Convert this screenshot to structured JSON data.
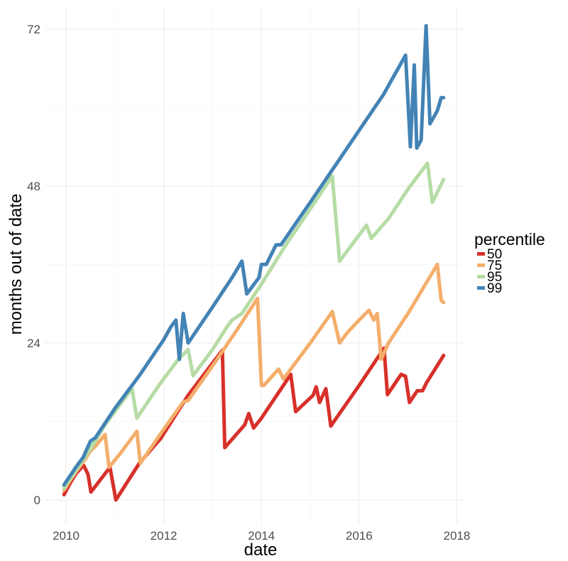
{
  "chart_data": {
    "type": "line",
    "title": "",
    "xlabel": "date",
    "ylabel": "months out of date",
    "xlim": [
      2009.55,
      2018.15
    ],
    "ylim": [
      -3,
      75
    ],
    "x_ticks": [
      2010,
      2012,
      2014,
      2016,
      2018
    ],
    "x_tick_labels": [
      "2010",
      "2012",
      "2014",
      "2016",
      "2018"
    ],
    "y_ticks": [
      0,
      24,
      48,
      72
    ],
    "y_tick_labels": [
      "0",
      "24",
      "48",
      "72"
    ],
    "grid": true,
    "legend": {
      "title": "percentile",
      "position": "right"
    },
    "series": [
      {
        "name": "50",
        "color": "#d7302a",
        "points": [
          [
            2009.96,
            0.8
          ],
          [
            2010.08,
            2.5
          ],
          [
            2010.2,
            4.0
          ],
          [
            2010.36,
            5.3
          ],
          [
            2010.45,
            3.9
          ],
          [
            2010.51,
            1.2
          ],
          [
            2010.9,
            5.0
          ],
          [
            2011.02,
            0.0
          ],
          [
            2011.5,
            5.6
          ],
          [
            2011.88,
            8.9
          ],
          [
            2011.93,
            9.3
          ],
          [
            2012.5,
            16.0
          ],
          [
            2013.2,
            22.9
          ],
          [
            2013.25,
            8.0
          ],
          [
            2013.66,
            11.5
          ],
          [
            2013.74,
            13.2
          ],
          [
            2013.84,
            11.0
          ],
          [
            2014.0,
            12.5
          ],
          [
            2014.6,
            19.2
          ],
          [
            2014.7,
            13.5
          ],
          [
            2015.06,
            16.0
          ],
          [
            2015.12,
            17.3
          ],
          [
            2015.19,
            14.9
          ],
          [
            2015.32,
            17.0
          ],
          [
            2015.42,
            11.3
          ],
          [
            2016.0,
            17.5
          ],
          [
            2016.51,
            23.2
          ],
          [
            2016.58,
            16.1
          ],
          [
            2016.86,
            19.2
          ],
          [
            2016.95,
            18.9
          ],
          [
            2017.03,
            14.9
          ],
          [
            2017.19,
            16.7
          ],
          [
            2017.3,
            16.7
          ],
          [
            2017.38,
            17.9
          ],
          [
            2017.73,
            22.1
          ]
        ]
      },
      {
        "name": "75",
        "color": "#f4ae6b",
        "points": [
          [
            2009.96,
            1.5
          ],
          [
            2010.1,
            3.2
          ],
          [
            2010.25,
            4.8
          ],
          [
            2010.4,
            6.3
          ],
          [
            2010.5,
            7.5
          ],
          [
            2010.6,
            8.2
          ],
          [
            2010.8,
            10.0
          ],
          [
            2010.88,
            5.0
          ],
          [
            2011.1,
            7.0
          ],
          [
            2011.45,
            10.5
          ],
          [
            2011.52,
            5.6
          ],
          [
            2012.0,
            10.8
          ],
          [
            2012.4,
            15.0
          ],
          [
            2012.5,
            15.2
          ],
          [
            2013.0,
            20.5
          ],
          [
            2013.5,
            26.0
          ],
          [
            2013.92,
            30.8
          ],
          [
            2014.0,
            17.5
          ],
          [
            2014.05,
            17.5
          ],
          [
            2014.35,
            20.0
          ],
          [
            2014.45,
            18.5
          ],
          [
            2014.7,
            21.0
          ],
          [
            2015.0,
            24.0
          ],
          [
            2015.45,
            28.8
          ],
          [
            2015.6,
            24.0
          ],
          [
            2015.75,
            25.5
          ],
          [
            2016.0,
            27.5
          ],
          [
            2016.2,
            29.0
          ],
          [
            2016.3,
            27.5
          ],
          [
            2016.37,
            28.5
          ],
          [
            2016.45,
            21.5
          ],
          [
            2016.6,
            24.0
          ],
          [
            2017.0,
            28.5
          ],
          [
            2017.6,
            36.0
          ],
          [
            2017.68,
            30.5
          ],
          [
            2017.73,
            30.2
          ]
        ]
      },
      {
        "name": "95",
        "color": "#b5dca5",
        "points": [
          [
            2009.96,
            1.8
          ],
          [
            2010.2,
            4.5
          ],
          [
            2010.5,
            7.8
          ],
          [
            2010.8,
            11.5
          ],
          [
            2011.05,
            14.0
          ],
          [
            2011.35,
            17.0
          ],
          [
            2011.45,
            12.5
          ],
          [
            2011.9,
            17.5
          ],
          [
            2012.3,
            21.5
          ],
          [
            2012.5,
            23.0
          ],
          [
            2012.6,
            19.0
          ],
          [
            2013.0,
            23.0
          ],
          [
            2013.3,
            26.5
          ],
          [
            2013.4,
            27.5
          ],
          [
            2013.6,
            28.5
          ],
          [
            2014.0,
            33.0
          ],
          [
            2014.5,
            39.0
          ],
          [
            2015.0,
            44.5
          ],
          [
            2015.45,
            49.5
          ],
          [
            2015.6,
            36.5
          ],
          [
            2015.9,
            39.5
          ],
          [
            2016.15,
            42.0
          ],
          [
            2016.25,
            40.0
          ],
          [
            2016.6,
            43.0
          ],
          [
            2017.0,
            47.5
          ],
          [
            2017.4,
            51.5
          ],
          [
            2017.5,
            45.5
          ],
          [
            2017.73,
            49.0
          ]
        ]
      },
      {
        "name": "99",
        "color": "#4383b5",
        "points": [
          [
            2009.96,
            2.3
          ],
          [
            2010.2,
            5.0
          ],
          [
            2010.35,
            6.5
          ],
          [
            2010.5,
            9.0
          ],
          [
            2010.6,
            9.5
          ],
          [
            2011.0,
            14.0
          ],
          [
            2011.5,
            19.0
          ],
          [
            2012.0,
            24.5
          ],
          [
            2012.15,
            26.5
          ],
          [
            2012.25,
            27.5
          ],
          [
            2012.32,
            21.5
          ],
          [
            2012.4,
            28.5
          ],
          [
            2012.5,
            24.0
          ],
          [
            2013.0,
            29.5
          ],
          [
            2013.4,
            34.0
          ],
          [
            2013.6,
            36.5
          ],
          [
            2013.7,
            31.5
          ],
          [
            2013.95,
            34.0
          ],
          [
            2014.0,
            36.0
          ],
          [
            2014.1,
            36.0
          ],
          [
            2014.3,
            39.0
          ],
          [
            2014.4,
            39.0
          ],
          [
            2015.0,
            45.5
          ],
          [
            2015.5,
            51.0
          ],
          [
            2016.0,
            56.5
          ],
          [
            2016.5,
            62.0
          ],
          [
            2016.95,
            68.0
          ],
          [
            2017.05,
            54.0
          ],
          [
            2017.13,
            66.5
          ],
          [
            2017.18,
            53.8
          ],
          [
            2017.27,
            55.0
          ],
          [
            2017.37,
            72.5
          ],
          [
            2017.45,
            57.5
          ],
          [
            2017.6,
            59.5
          ],
          [
            2017.68,
            61.5
          ],
          [
            2017.73,
            61.5
          ]
        ]
      }
    ]
  }
}
